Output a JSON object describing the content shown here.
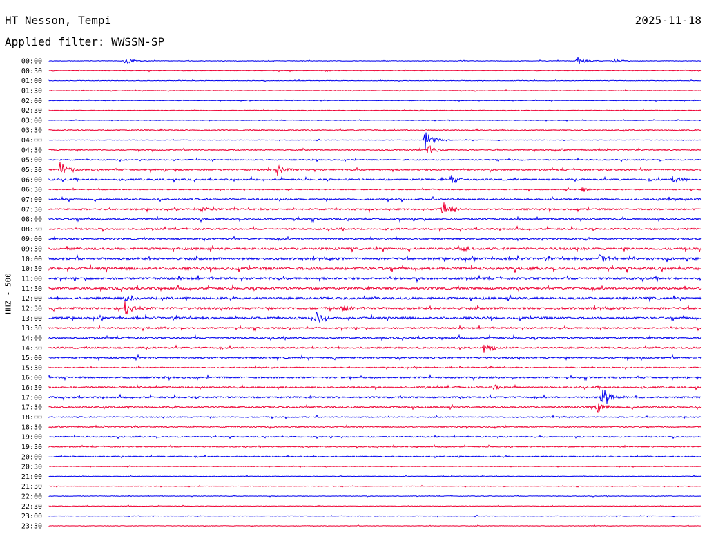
{
  "header": {
    "station": "HT Nesson, Tempi",
    "date": "2025-11-18",
    "filter_text": "Applied filter: WWSSN-SP"
  },
  "axis": {
    "channel_label": "HHZ - 500"
  },
  "colors": {
    "trace_a": "#0000ee",
    "trace_b": "#ee0033"
  },
  "chart_data": {
    "type": "line",
    "ylabel": "HHZ - 500",
    "time_labels": [
      "00:00",
      "00:30",
      "01:00",
      "01:30",
      "02:00",
      "02:30",
      "03:00",
      "03:30",
      "04:00",
      "04:30",
      "05:00",
      "05:30",
      "06:00",
      "06:30",
      "07:00",
      "07:30",
      "08:00",
      "08:30",
      "09:00",
      "09:30",
      "10:00",
      "10:30",
      "11:00",
      "11:30",
      "12:00",
      "12:30",
      "13:00",
      "13:30",
      "14:00",
      "14:30",
      "15:00",
      "15:30",
      "16:00",
      "16:30",
      "17:00",
      "17:30",
      "18:00",
      "18:30",
      "19:00",
      "19:30",
      "20:00",
      "20:30",
      "21:00",
      "21:30",
      "22:00",
      "22:30",
      "23:00",
      "23:30"
    ],
    "row_minutes": 30,
    "trace_colors": [
      "#0000ee",
      "#ee0033"
    ],
    "noise_level": [
      1,
      1,
      1,
      1,
      1,
      1,
      1,
      2,
      1,
      2,
      2,
      3,
      3,
      2,
      3,
      3,
      3,
      3,
      3,
      4,
      4,
      5,
      4,
      4,
      4,
      4,
      4,
      3,
      3,
      3,
      3,
      2,
      3,
      3,
      3,
      3,
      2,
      2,
      2,
      2,
      2,
      1,
      1,
      1,
      1,
      1,
      1,
      1
    ],
    "events": [
      {
        "row": 0,
        "minute": 3.5,
        "amplitude": 6
      },
      {
        "row": 0,
        "minute": 24.3,
        "amplitude": 6
      },
      {
        "row": 0,
        "minute": 26.0,
        "amplitude": 3
      },
      {
        "row": 8,
        "minute": 17.3,
        "amplitude": 14
      },
      {
        "row": 9,
        "minute": 17.4,
        "amplitude": 10
      },
      {
        "row": 11,
        "minute": 0.5,
        "amplitude": 12
      },
      {
        "row": 11,
        "minute": 10.5,
        "amplitude": 11
      },
      {
        "row": 12,
        "minute": 18.5,
        "amplitude": 8
      },
      {
        "row": 12,
        "minute": 28.7,
        "amplitude": 9
      },
      {
        "row": 13,
        "minute": 24.5,
        "amplitude": 4
      },
      {
        "row": 15,
        "minute": 7.0,
        "amplitude": 4
      },
      {
        "row": 15,
        "minute": 18.1,
        "amplitude": 12
      },
      {
        "row": 19,
        "minute": 18.8,
        "amplitude": 6
      },
      {
        "row": 20,
        "minute": 25.3,
        "amplitude": 9
      },
      {
        "row": 24,
        "minute": 3.5,
        "amplitude": 6
      },
      {
        "row": 25,
        "minute": 3.5,
        "amplitude": 12
      },
      {
        "row": 25,
        "minute": 13.5,
        "amplitude": 6
      },
      {
        "row": 26,
        "minute": 12.3,
        "amplitude": 10
      },
      {
        "row": 29,
        "minute": 20.0,
        "amplitude": 10
      },
      {
        "row": 33,
        "minute": 20.5,
        "amplitude": 5
      },
      {
        "row": 34,
        "minute": 25.4,
        "amplitude": 20
      },
      {
        "row": 35,
        "minute": 25.2,
        "amplitude": 8
      }
    ]
  }
}
